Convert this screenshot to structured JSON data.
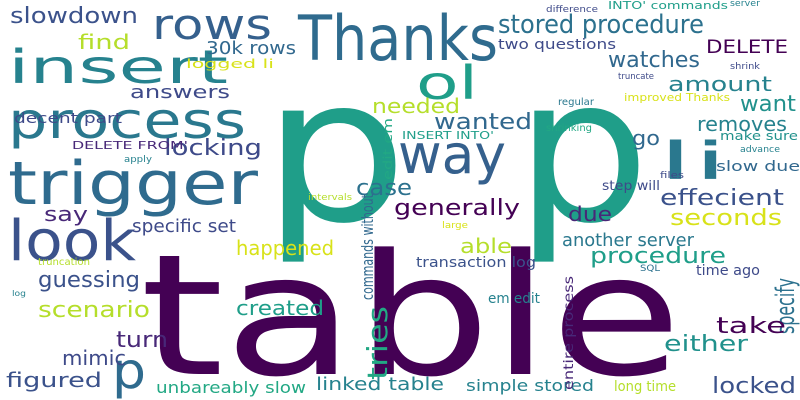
{
  "words": [
    {
      "text": "table",
      "color": "#440154"
    },
    {
      "text": "p",
      "color": "#1f9e89"
    },
    {
      "text": "p",
      "color": "#1f9e89"
    },
    {
      "text": "trigger",
      "color": "#2f6b8e"
    },
    {
      "text": "Thanks",
      "color": "#2f6b8e"
    },
    {
      "text": "process",
      "color": "#2a788e"
    },
    {
      "text": "insert",
      "color": "#26828e"
    },
    {
      "text": "look",
      "color": "#3b528b"
    },
    {
      "text": "rows",
      "color": "#35608d"
    },
    {
      "text": "way",
      "color": "#35608d"
    },
    {
      "text": "li",
      "color": "#2a788e"
    },
    {
      "text": "ol",
      "color": "#1f9e89"
    },
    {
      "text": "p",
      "color": "#2f6b8e"
    },
    {
      "text": "stored procedure",
      "color": "#2c718e"
    },
    {
      "text": "DELETE",
      "color": "#440154"
    },
    {
      "text": "find",
      "color": "#b5de2b"
    },
    {
      "text": "slowdown",
      "color": "#3b528b"
    },
    {
      "text": "watches",
      "color": "#31688e"
    },
    {
      "text": "30k rows",
      "color": "#31688e"
    },
    {
      "text": "amount",
      "color": "#26828e"
    },
    {
      "text": "answers",
      "color": "#3e4a89"
    },
    {
      "text": "want",
      "color": "#21918c"
    },
    {
      "text": "needed",
      "color": "#b5de2b"
    },
    {
      "text": "wanted",
      "color": "#31688e"
    },
    {
      "text": "removes",
      "color": "#26828e"
    },
    {
      "text": "locking",
      "color": "#3e4a89"
    },
    {
      "text": "go",
      "color": "#31688e"
    },
    {
      "text": "case",
      "color": "#2c718e"
    },
    {
      "text": "generally",
      "color": "#440154"
    },
    {
      "text": "effecient",
      "color": "#3b528b"
    },
    {
      "text": "seconds",
      "color": "#d8e219"
    },
    {
      "text": "say",
      "color": "#482878"
    },
    {
      "text": "due",
      "color": "#482878"
    },
    {
      "text": "specific set",
      "color": "#3e4a89"
    },
    {
      "text": "able",
      "color": "#b5de2b"
    },
    {
      "text": "happened",
      "color": "#d8e219"
    },
    {
      "text": "another server",
      "color": "#2a788e"
    },
    {
      "text": "procedure",
      "color": "#1f9e89"
    },
    {
      "text": "guessing",
      "color": "#3b528b"
    },
    {
      "text": "scenario",
      "color": "#b5de2b"
    },
    {
      "text": "created",
      "color": "#1f9e89"
    },
    {
      "text": "tries",
      "color": "#22a884"
    },
    {
      "text": "specify",
      "color": "#2c718e"
    },
    {
      "text": "take",
      "color": "#440154"
    },
    {
      "text": "mimic",
      "color": "#3e4a89"
    },
    {
      "text": "turn",
      "color": "#482878"
    },
    {
      "text": "either",
      "color": "#21918c"
    },
    {
      "text": "figured",
      "color": "#3b528b"
    },
    {
      "text": "locked",
      "color": "#3b528b"
    },
    {
      "text": "linked table",
      "color": "#26828e"
    },
    {
      "text": "simple stored",
      "color": "#26828e"
    },
    {
      "text": "unbareably slow",
      "color": "#22a884"
    },
    {
      "text": "decent part",
      "color": "#3e4a89"
    },
    {
      "text": "transaction log",
      "color": "#3b528b"
    },
    {
      "text": "two questions",
      "color": "#3e4a89"
    },
    {
      "text": "step will",
      "color": "#3e4a89"
    },
    {
      "text": "time ago",
      "color": "#3e4a89"
    },
    {
      "text": "slow due",
      "color": "#31688e"
    },
    {
      "text": "make sure",
      "color": "#21918c"
    },
    {
      "text": "long time",
      "color": "#b5de2b"
    },
    {
      "text": "commands without",
      "color": "#31688e"
    },
    {
      "text": "entire process",
      "color": "#482878"
    },
    {
      "text": "em edit",
      "color": "#26828e"
    },
    {
      "text": "edit em",
      "color": "#22a884"
    },
    {
      "text": "logged li",
      "color": "#d8e219"
    },
    {
      "text": "INSERT INTO'",
      "color": "#1f9e89"
    },
    {
      "text": "DELETE FROM'",
      "color": "#482878"
    },
    {
      "text": "INTO' commands",
      "color": "#1f9e89"
    },
    {
      "text": "improved Thanks",
      "color": "#d8e219"
    },
    {
      "text": "regular",
      "color": "#2a788e"
    },
    {
      "text": "shrinking",
      "color": "#22a884"
    },
    {
      "text": "advance",
      "color": "#26828e"
    },
    {
      "text": "difference",
      "color": "#3e4a89"
    },
    {
      "text": "server",
      "color": "#26828e"
    },
    {
      "text": "truncate",
      "color": "#3e4a89"
    },
    {
      "text": "shrink",
      "color": "#3e4a89"
    },
    {
      "text": "files",
      "color": "#3e4a89"
    },
    {
      "text": "apply",
      "color": "#26828e"
    },
    {
      "text": "intervals",
      "color": "#b5de2b"
    },
    {
      "text": "large",
      "color": "#d8e219"
    },
    {
      "text": "truncation",
      "color": "#b5de2b"
    },
    {
      "text": "SQL",
      "color": "#2c718e"
    },
    {
      "text": "log",
      "color": "#26828e"
    }
  ]
}
